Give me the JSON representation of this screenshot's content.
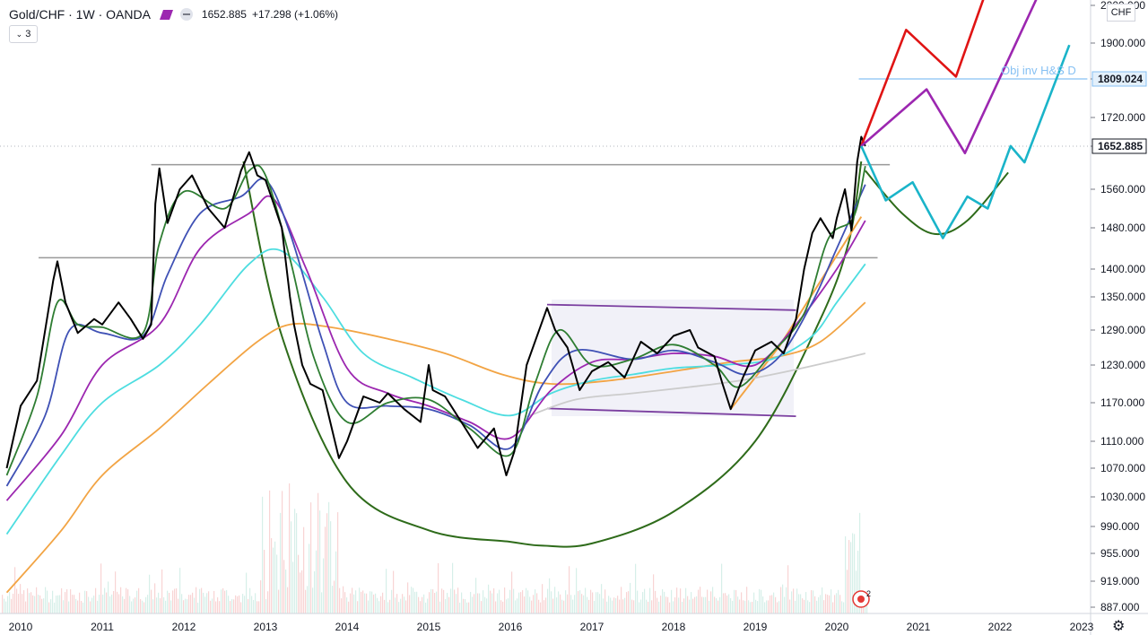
{
  "header": {
    "symbol": "Gold/CHF · 1W · OANDA",
    "price": "1652.885",
    "change": "+17.298 (+1.06%)",
    "indicator_count": "3"
  },
  "currency_label": "CHF",
  "annotation_text": "Obj inv H&S D",
  "price_axis": {
    "ticks": [
      "2000.000",
      "1900.000",
      "1809.024",
      "1720.000",
      "1652.885",
      "1560.000",
      "1480.000",
      "1400.000",
      "1350.000",
      "1290.000",
      "1230.000",
      "1170.000",
      "1110.000",
      "1070.000",
      "1030.000",
      "990.000",
      "955.000",
      "919.000",
      "887.000"
    ],
    "badges": [
      {
        "label": "1809.024",
        "color": "#2962ff"
      },
      {
        "label": "1652.885",
        "color": "#131722"
      }
    ]
  },
  "chart_data": {
    "type": "line",
    "title": "",
    "symbol": "Gold/CHF",
    "interval": "1W",
    "source": "OANDA",
    "x_ticks": [
      "2010",
      "2011",
      "2012",
      "2013",
      "2014",
      "2015",
      "2016",
      "2017",
      "2018",
      "2019",
      "2020",
      "2021",
      "2022",
      "2023"
    ],
    "ylim": [
      887,
      2000
    ],
    "series": [
      {
        "name": "Gold/CHF",
        "color": "#000000",
        "points": [
          [
            2009.83,
            1070
          ],
          [
            2010.0,
            1165
          ],
          [
            2010.2,
            1205
          ],
          [
            2010.4,
            1380
          ],
          [
            2010.45,
            1415
          ],
          [
            2010.55,
            1340
          ],
          [
            2010.7,
            1285
          ],
          [
            2010.9,
            1310
          ],
          [
            2011.0,
            1300
          ],
          [
            2011.2,
            1340
          ],
          [
            2011.35,
            1310
          ],
          [
            2011.5,
            1275
          ],
          [
            2011.6,
            1300
          ],
          [
            2011.65,
            1530
          ],
          [
            2011.7,
            1605
          ],
          [
            2011.8,
            1490
          ],
          [
            2011.95,
            1560
          ],
          [
            2012.1,
            1590
          ],
          [
            2012.3,
            1520
          ],
          [
            2012.5,
            1480
          ],
          [
            2012.6,
            1540
          ],
          [
            2012.7,
            1600
          ],
          [
            2012.8,
            1640
          ],
          [
            2012.9,
            1590
          ],
          [
            2013.0,
            1580
          ],
          [
            2013.1,
            1530
          ],
          [
            2013.2,
            1480
          ],
          [
            2013.3,
            1350
          ],
          [
            2013.35,
            1300
          ],
          [
            2013.45,
            1230
          ],
          [
            2013.55,
            1200
          ],
          [
            2013.7,
            1190
          ],
          [
            2013.9,
            1085
          ],
          [
            2014.0,
            1110
          ],
          [
            2014.2,
            1180
          ],
          [
            2014.4,
            1170
          ],
          [
            2014.5,
            1185
          ],
          [
            2014.7,
            1160
          ],
          [
            2014.9,
            1140
          ],
          [
            2015.0,
            1230
          ],
          [
            2015.05,
            1190
          ],
          [
            2015.2,
            1180
          ],
          [
            2015.4,
            1140
          ],
          [
            2015.6,
            1100
          ],
          [
            2015.8,
            1130
          ],
          [
            2015.95,
            1060
          ],
          [
            2016.05,
            1095
          ],
          [
            2016.2,
            1230
          ],
          [
            2016.45,
            1330
          ],
          [
            2016.55,
            1290
          ],
          [
            2016.7,
            1260
          ],
          [
            2016.85,
            1190
          ],
          [
            2017.0,
            1220
          ],
          [
            2017.2,
            1235
          ],
          [
            2017.4,
            1210
          ],
          [
            2017.6,
            1270
          ],
          [
            2017.8,
            1250
          ],
          [
            2018.0,
            1280
          ],
          [
            2018.2,
            1290
          ],
          [
            2018.3,
            1260
          ],
          [
            2018.5,
            1245
          ],
          [
            2018.6,
            1200
          ],
          [
            2018.7,
            1160
          ],
          [
            2018.85,
            1210
          ],
          [
            2019.0,
            1255
          ],
          [
            2019.2,
            1270
          ],
          [
            2019.35,
            1250
          ],
          [
            2019.5,
            1310
          ],
          [
            2019.6,
            1400
          ],
          [
            2019.7,
            1470
          ],
          [
            2019.8,
            1500
          ],
          [
            2019.95,
            1460
          ],
          [
            2020.0,
            1500
          ],
          [
            2020.1,
            1560
          ],
          [
            2020.18,
            1475
          ],
          [
            2020.25,
            1620
          ],
          [
            2020.3,
            1675
          ],
          [
            2020.35,
            1653
          ]
        ]
      },
      {
        "name": "MA (green)",
        "color": "#2e7d32",
        "points": [
          [
            2009.83,
            1060
          ],
          [
            2010.2,
            1180
          ],
          [
            2010.45,
            1340
          ],
          [
            2010.7,
            1300
          ],
          [
            2011.0,
            1295
          ],
          [
            2011.5,
            1285
          ],
          [
            2011.7,
            1450
          ],
          [
            2012.0,
            1555
          ],
          [
            2012.5,
            1520
          ],
          [
            2012.8,
            1600
          ],
          [
            2013.0,
            1590
          ],
          [
            2013.3,
            1420
          ],
          [
            2013.6,
            1240
          ],
          [
            2014.0,
            1140
          ],
          [
            2014.5,
            1170
          ],
          [
            2015.0,
            1175
          ],
          [
            2015.5,
            1130
          ],
          [
            2016.0,
            1090
          ],
          [
            2016.3,
            1200
          ],
          [
            2016.6,
            1290
          ],
          [
            2017.0,
            1230
          ],
          [
            2017.5,
            1240
          ],
          [
            2018.0,
            1265
          ],
          [
            2018.5,
            1230
          ],
          [
            2018.8,
            1195
          ],
          [
            2019.2,
            1250
          ],
          [
            2019.6,
            1320
          ],
          [
            2019.9,
            1460
          ],
          [
            2020.2,
            1500
          ],
          [
            2020.35,
            1610
          ]
        ]
      },
      {
        "name": "MA (blue)",
        "color": "#3f51b5",
        "points": [
          [
            2009.83,
            1045
          ],
          [
            2010.3,
            1150
          ],
          [
            2010.6,
            1290
          ],
          [
            2011.0,
            1285
          ],
          [
            2011.5,
            1280
          ],
          [
            2011.8,
            1390
          ],
          [
            2012.2,
            1510
          ],
          [
            2012.7,
            1545
          ],
          [
            2013.0,
            1580
          ],
          [
            2013.3,
            1470
          ],
          [
            2013.7,
            1270
          ],
          [
            2014.0,
            1170
          ],
          [
            2014.5,
            1165
          ],
          [
            2015.0,
            1160
          ],
          [
            2015.5,
            1135
          ],
          [
            2016.0,
            1100
          ],
          [
            2016.4,
            1200
          ],
          [
            2016.8,
            1255
          ],
          [
            2017.5,
            1240
          ],
          [
            2018.0,
            1255
          ],
          [
            2018.5,
            1235
          ],
          [
            2018.9,
            1215
          ],
          [
            2019.3,
            1245
          ],
          [
            2019.7,
            1340
          ],
          [
            2020.0,
            1440
          ],
          [
            2020.35,
            1570
          ]
        ]
      },
      {
        "name": "MA (purple)",
        "color": "#9c27b0",
        "points": [
          [
            2009.83,
            1025
          ],
          [
            2010.5,
            1120
          ],
          [
            2011.0,
            1230
          ],
          [
            2011.7,
            1300
          ],
          [
            2012.2,
            1440
          ],
          [
            2012.8,
            1510
          ],
          [
            2013.1,
            1540
          ],
          [
            2013.5,
            1400
          ],
          [
            2014.0,
            1225
          ],
          [
            2014.5,
            1185
          ],
          [
            2015.0,
            1165
          ],
          [
            2015.5,
            1140
          ],
          [
            2016.0,
            1115
          ],
          [
            2016.5,
            1190
          ],
          [
            2017.0,
            1235
          ],
          [
            2017.5,
            1240
          ],
          [
            2018.0,
            1250
          ],
          [
            2018.5,
            1245
          ],
          [
            2019.0,
            1230
          ],
          [
            2019.5,
            1300
          ],
          [
            2020.0,
            1400
          ],
          [
            2020.35,
            1495
          ]
        ]
      },
      {
        "name": "MA (cyan)",
        "color": "#4ddde0",
        "points": [
          [
            2009.83,
            980
          ],
          [
            2010.5,
            1090
          ],
          [
            2011.0,
            1170
          ],
          [
            2011.7,
            1230
          ],
          [
            2012.2,
            1300
          ],
          [
            2012.8,
            1410
          ],
          [
            2013.2,
            1435
          ],
          [
            2013.7,
            1350
          ],
          [
            2014.2,
            1250
          ],
          [
            2014.8,
            1210
          ],
          [
            2015.4,
            1175
          ],
          [
            2016.0,
            1150
          ],
          [
            2016.5,
            1185
          ],
          [
            2017.0,
            1205
          ],
          [
            2017.5,
            1215
          ],
          [
            2018.0,
            1225
          ],
          [
            2018.6,
            1230
          ],
          [
            2019.2,
            1240
          ],
          [
            2019.7,
            1280
          ],
          [
            2020.0,
            1340
          ],
          [
            2020.35,
            1410
          ]
        ]
      },
      {
        "name": "MA (orange)",
        "color": "#f2a444",
        "points": [
          [
            2009.83,
            905
          ],
          [
            2010.5,
            985
          ],
          [
            2011.0,
            1060
          ],
          [
            2011.7,
            1130
          ],
          [
            2012.3,
            1200
          ],
          [
            2012.9,
            1270
          ],
          [
            2013.3,
            1300
          ],
          [
            2013.8,
            1295
          ],
          [
            2014.5,
            1275
          ],
          [
            2015.2,
            1250
          ],
          [
            2015.9,
            1215
          ],
          [
            2016.5,
            1200
          ],
          [
            2017.2,
            1205
          ],
          [
            2018.0,
            1220
          ],
          [
            2018.7,
            1235
          ],
          [
            2019.3,
            1245
          ],
          [
            2019.8,
            1270
          ],
          [
            2020.35,
            1340
          ]
        ]
      },
      {
        "name": "MA (grey)",
        "color": "#cccccc",
        "points": [
          [
            2016.2,
            1148
          ],
          [
            2016.8,
            1175
          ],
          [
            2017.5,
            1185
          ],
          [
            2018.2,
            1195
          ],
          [
            2018.8,
            1205
          ],
          [
            2019.4,
            1220
          ],
          [
            2019.9,
            1235
          ],
          [
            2020.35,
            1250
          ]
        ]
      }
    ],
    "drawings": {
      "horizontal_lines": [
        {
          "y": 1613,
          "x_range": [
            2011.6,
            2020.65
          ],
          "color": "#999999"
        },
        {
          "y": 1422,
          "x_range": [
            2010.22,
            2020.5
          ],
          "color": "#999999"
        },
        {
          "y": 1809.024,
          "x_range": [
            2020.27,
            2023.07
          ],
          "color": "#87c1f3"
        }
      ],
      "channel_top": [
        [
          2016.45,
          1336
        ],
        [
          2019.5,
          1326
        ]
      ],
      "channel_bottom": [
        [
          2016.45,
          1161
        ],
        [
          2019.5,
          1149
        ]
      ],
      "cup_curve": [
        [
          2012.73,
          1620
        ],
        [
          2013.2,
          1280
        ],
        [
          2014.0,
          1050
        ],
        [
          2015.0,
          985
        ],
        [
          2016.0,
          970
        ],
        [
          2016.4,
          965
        ],
        [
          2017.0,
          968
        ],
        [
          2018.0,
          1010
        ],
        [
          2019.0,
          1110
        ],
        [
          2019.8,
          1310
        ],
        [
          2020.15,
          1455
        ],
        [
          2020.3,
          1620
        ]
      ],
      "handle_curve": [
        [
          2020.35,
          1600
        ],
        [
          2020.8,
          1510
        ],
        [
          2021.2,
          1468
        ],
        [
          2021.6,
          1495
        ],
        [
          2022.1,
          1596
        ]
      ],
      "orange_trend": [
        [
          2018.7,
          1160
        ],
        [
          2019.3,
          1263
        ],
        [
          2020.3,
          1503
        ]
      ],
      "projection_red": [
        [
          2020.3,
          1653
        ],
        [
          2020.85,
          1935
        ],
        [
          2021.46,
          1815
        ],
        [
          2021.8,
          2020
        ]
      ],
      "projection_purple": [
        [
          2020.3,
          1653
        ],
        [
          2021.1,
          1785
        ],
        [
          2021.57,
          1638
        ],
        [
          2022.45,
          2020
        ]
      ],
      "projection_cyan": [
        [
          2020.3,
          1653
        ],
        [
          2020.6,
          1537
        ],
        [
          2020.93,
          1575
        ],
        [
          2021.3,
          1460
        ],
        [
          2021.6,
          1545
        ],
        [
          2021.85,
          1520
        ],
        [
          2022.13,
          1653
        ],
        [
          2022.3,
          1618
        ],
        [
          2022.85,
          1895
        ]
      ]
    },
    "volume": {
      "description_colors": {
        "up": "#d6efe9",
        "down": "#f8d4d4"
      },
      "ylim": [
        0,
        100
      ]
    }
  }
}
